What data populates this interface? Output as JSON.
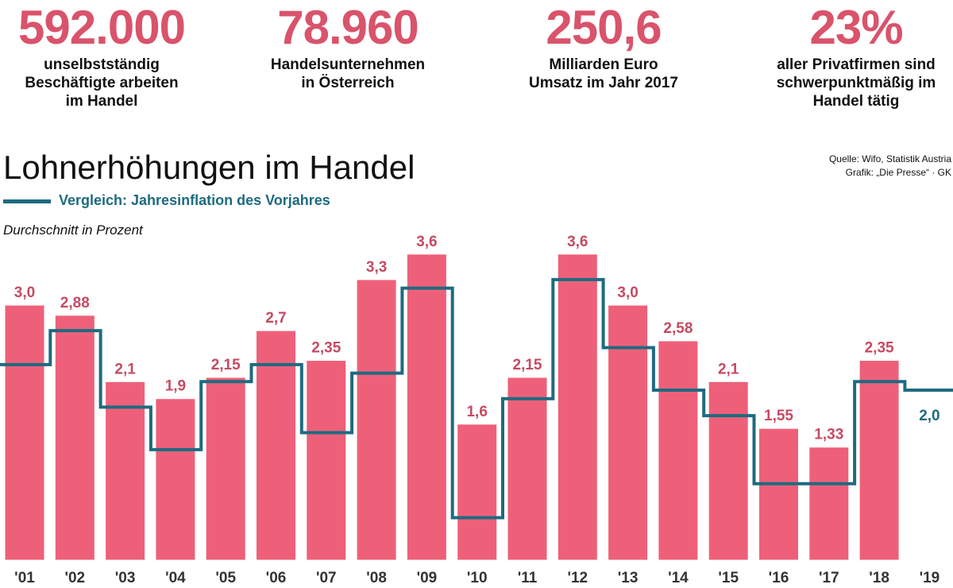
{
  "stats": [
    {
      "value": "592.000",
      "lines": [
        "unselbstständig",
        "Beschäftigte arbeiten",
        "im Handel"
      ]
    },
    {
      "value": "78.960",
      "lines": [
        "Handelsunternehmen",
        "in Österreich"
      ]
    },
    {
      "value": "250,6",
      "lines": [
        "Milliarden Euro",
        "Umsatz im Jahr 2017"
      ]
    },
    {
      "value": "23%",
      "lines": [
        "aller Privatfirmen sind",
        "schwerpunktmäßig im",
        "Handel tätig"
      ]
    }
  ],
  "title": "Lohnerhöhungen im Handel",
  "legend_label": "Vergleich: Jahresinflation des Vorjahres",
  "subtitle": "Durchschnitt in Prozent",
  "source": [
    "Quelle: Wifo, Statistik Austria",
    "Grafik: „Die Presse“ · GK"
  ],
  "colors": {
    "bar": "#ee6079",
    "bar_label": "#c64a62",
    "line": "#1d6b80",
    "stat": "#d9536b"
  },
  "chart_data": {
    "type": "bar",
    "title": "Lohnerhöhungen im Handel",
    "ylabel": "Durchschnitt in Prozent",
    "ylim": [
      0,
      4.0
    ],
    "categories": [
      "'01",
      "'02",
      "'03",
      "'04",
      "'05",
      "'06",
      "'07",
      "'08",
      "'09",
      "'10",
      "'11",
      "'12",
      "'13",
      "'14",
      "'15",
      "'16",
      "'17",
      "'18",
      "'19"
    ],
    "series": [
      {
        "name": "Lohnerhöhung",
        "values": [
          3.0,
          2.88,
          2.1,
          1.9,
          2.15,
          2.7,
          2.35,
          3.3,
          3.6,
          1.6,
          2.15,
          3.6,
          3.0,
          2.58,
          2.1,
          1.55,
          1.33,
          2.35,
          null
        ],
        "labels": [
          "3,0",
          "2,88",
          "2,1",
          "1,9",
          "2,15",
          "2,7",
          "2,35",
          "3,3",
          "3,6",
          "1,6",
          "2,15",
          "3,6",
          "3,0",
          "2,58",
          "2,1",
          "1,55",
          "1,33",
          "2,35",
          ""
        ]
      },
      {
        "name": "Vergleich: Jahresinflation des Vorjahres",
        "values": [
          2.3,
          2.7,
          1.8,
          1.3,
          2.1,
          2.3,
          1.5,
          2.2,
          3.2,
          0.5,
          1.9,
          3.3,
          2.5,
          2.0,
          1.7,
          0.9,
          0.9,
          2.1,
          2.0
        ],
        "labels": [
          "",
          "",
          "",
          "",
          "",
          "",
          "",
          "",
          "",
          "",
          "",
          "",
          "",
          "",
          "",
          "",
          "",
          "",
          "2,0"
        ]
      }
    ]
  }
}
